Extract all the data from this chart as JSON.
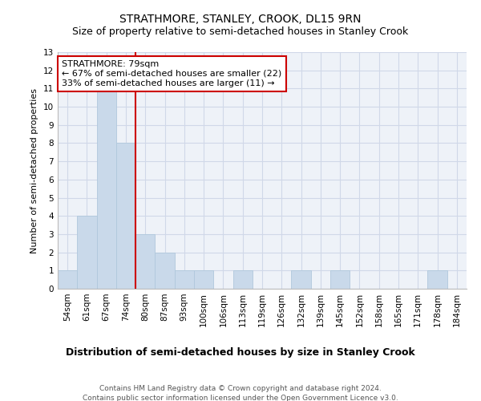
{
  "title": "STRATHMORE, STANLEY, CROOK, DL15 9RN",
  "subtitle": "Size of property relative to semi-detached houses in Stanley Crook",
  "xlabel": "Distribution of semi-detached houses by size in Stanley Crook",
  "ylabel": "Number of semi-detached properties",
  "categories": [
    "54sqm",
    "61sqm",
    "67sqm",
    "74sqm",
    "80sqm",
    "87sqm",
    "93sqm",
    "100sqm",
    "106sqm",
    "113sqm",
    "119sqm",
    "126sqm",
    "132sqm",
    "139sqm",
    "145sqm",
    "152sqm",
    "158sqm",
    "165sqm",
    "171sqm",
    "178sqm",
    "184sqm"
  ],
  "values": [
    1,
    4,
    11,
    8,
    3,
    2,
    1,
    1,
    0,
    1,
    0,
    0,
    1,
    0,
    1,
    0,
    0,
    0,
    0,
    1,
    0
  ],
  "bar_color": "#c9d9ea",
  "bar_edge_color": "#b0c8dc",
  "property_line_index": 3.5,
  "property_line_color": "#cc0000",
  "annotation_text": "STRATHMORE: 79sqm\n← 67% of semi-detached houses are smaller (22)\n33% of semi-detached houses are larger (11) →",
  "annotation_box_color": "#ffffff",
  "annotation_box_edge_color": "#cc0000",
  "ylim": [
    0,
    13
  ],
  "yticks": [
    0,
    1,
    2,
    3,
    4,
    5,
    6,
    7,
    8,
    9,
    10,
    11,
    12,
    13
  ],
  "grid_color": "#d0d8e8",
  "background_color": "#eef2f8",
  "footer_text": "Contains HM Land Registry data © Crown copyright and database right 2024.\nContains public sector information licensed under the Open Government Licence v3.0.",
  "title_fontsize": 10,
  "subtitle_fontsize": 9,
  "xlabel_fontsize": 9,
  "ylabel_fontsize": 8,
  "annotation_fontsize": 8,
  "footer_fontsize": 6.5,
  "tick_fontsize": 7.5
}
